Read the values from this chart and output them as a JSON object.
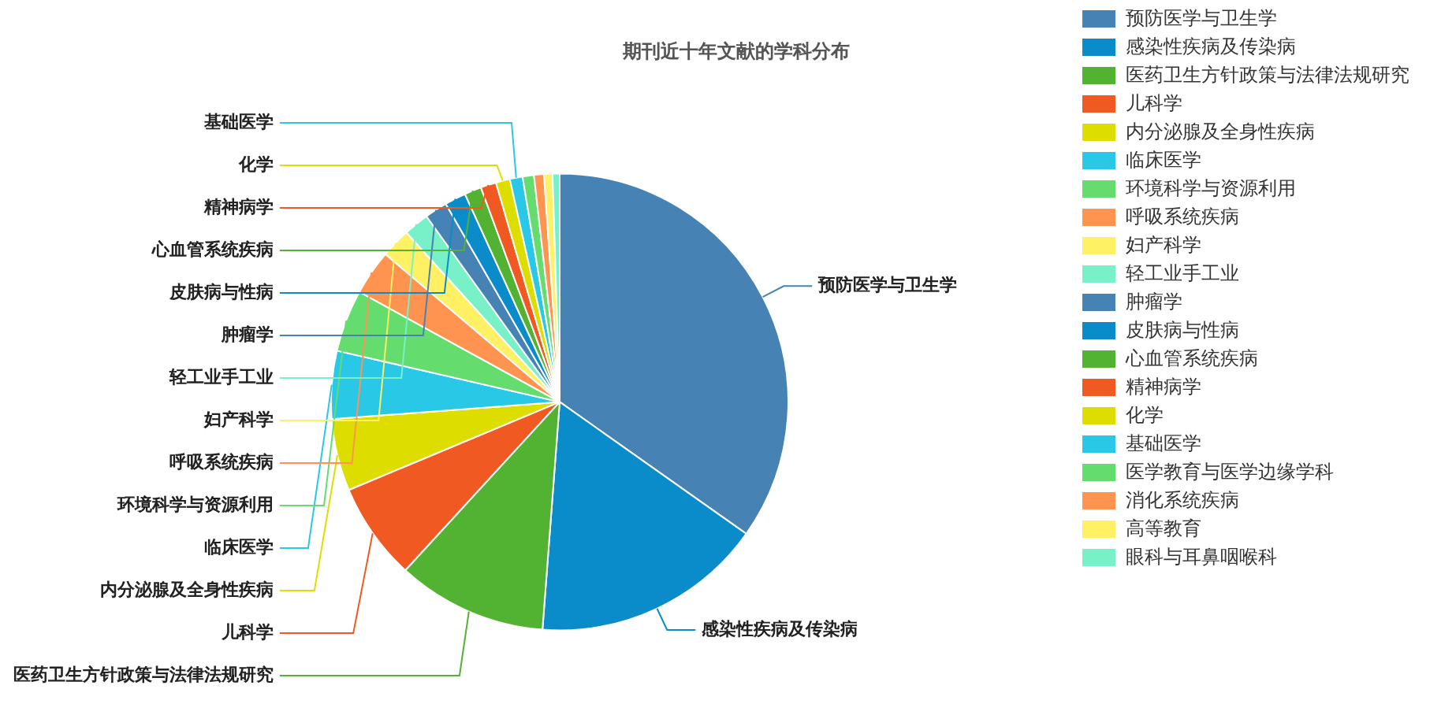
{
  "chart_data": {
    "type": "pie",
    "title": "期刊近十年文献的学科分布",
    "categories": [
      "预防医学与卫生学",
      "感染性疾病及传染病",
      "医药卫生方针政策与法律法规研究",
      "儿科学",
      "内分泌腺及全身性疾病",
      "临床医学",
      "环境科学与资源利用",
      "呼吸系统疾病",
      "妇产科学",
      "轻工业手工业",
      "肿瘤学",
      "皮肤病与性病",
      "心血管系统疾病",
      "精神病学",
      "化学",
      "基础医学",
      "医学教育与医学边缘学科",
      "消化系统疾病",
      "高等教育",
      "眼科与耳鼻咽喉科"
    ],
    "values": [
      34.8,
      16.4,
      10.6,
      6.9,
      5.1,
      4.8,
      4.4,
      3.2,
      2.1,
      1.8,
      1.6,
      1.5,
      1.2,
      1.1,
      1.0,
      0.9,
      0.8,
      0.7,
      0.6,
      0.5
    ],
    "colors": [
      "#4682b4",
      "#0a8ccb",
      "#52b232",
      "#f05a22",
      "#dddd00",
      "#28c8e6",
      "#64dc6e",
      "#ff9450",
      "#fff064",
      "#78f0c8",
      "#4682b4",
      "#0a8ccb",
      "#52b232",
      "#f05a22",
      "#dddd00",
      "#28c8e6",
      "#64dc6e",
      "#ff9450",
      "#fff064",
      "#78f0c8"
    ],
    "legend": "top right"
  }
}
